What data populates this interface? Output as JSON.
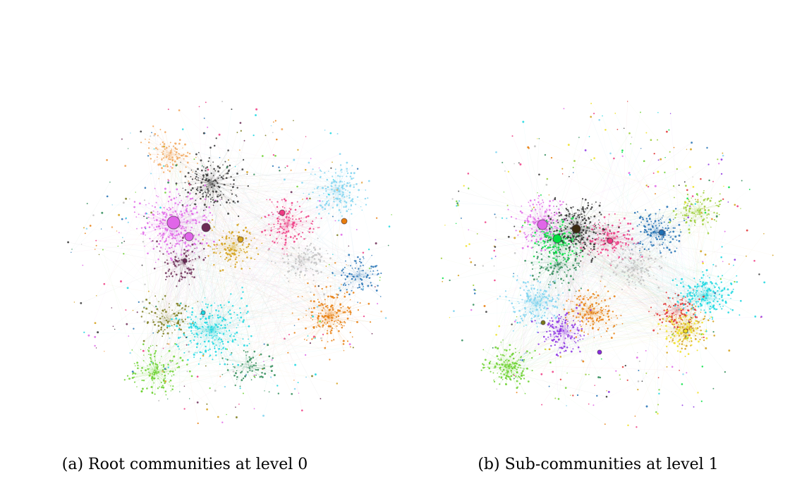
{
  "figure": {
    "panels": [
      {
        "caption": "(a) Root communities at level 0",
        "level": 0,
        "communities": [
          {
            "color": "#e066e8",
            "weight": 1.6
          },
          {
            "color": "#19d7e0",
            "weight": 1.4
          },
          {
            "color": "#e87d0c",
            "weight": 1.0
          },
          {
            "color": "#6ad12b",
            "weight": 0.8
          },
          {
            "color": "#d4a017",
            "weight": 0.7
          },
          {
            "color": "#ee3a82",
            "weight": 0.8
          },
          {
            "color": "#7fd4f0",
            "weight": 0.9
          },
          {
            "color": "#333333",
            "weight": 1.0
          },
          {
            "color": "#6b2a55",
            "weight": 0.5
          },
          {
            "color": "#7a7a1a",
            "weight": 0.5
          },
          {
            "color": "#1f6fb3",
            "weight": 0.5
          },
          {
            "color": "#f2a65a",
            "weight": 0.6
          },
          {
            "color": "#c2c2c2",
            "weight": 0.7
          },
          {
            "color": "#2e8b57",
            "weight": 0.4
          }
        ],
        "hubs": [
          {
            "color": "#e066e8",
            "size": 9
          },
          {
            "color": "#6b2a55",
            "size": 6
          },
          {
            "color": "#e066e8",
            "size": 6
          },
          {
            "color": "#d4a017",
            "size": 4
          },
          {
            "color": "#ee3a82",
            "size": 4
          },
          {
            "color": "#e87d0c",
            "size": 4
          },
          {
            "color": "#19d7e0",
            "size": 3
          },
          {
            "color": "#6b2a55",
            "size": 3
          }
        ]
      },
      {
        "caption": "(b) Sub-communities at level 1",
        "level": 1,
        "communities": [
          {
            "color": "#e066e8",
            "weight": 0.8
          },
          {
            "color": "#00e040",
            "weight": 0.7
          },
          {
            "color": "#19d7e0",
            "weight": 0.9
          },
          {
            "color": "#e87d0c",
            "weight": 0.7
          },
          {
            "color": "#6ad12b",
            "weight": 0.7
          },
          {
            "color": "#d4a017",
            "weight": 0.5
          },
          {
            "color": "#ee3a82",
            "weight": 0.6
          },
          {
            "color": "#7fd4f0",
            "weight": 0.8
          },
          {
            "color": "#333333",
            "weight": 1.1
          },
          {
            "color": "#8a2be2",
            "weight": 0.6
          },
          {
            "color": "#1f6fb3",
            "weight": 0.6
          },
          {
            "color": "#f0e020",
            "weight": 0.4
          },
          {
            "color": "#c2c2c2",
            "weight": 0.6
          },
          {
            "color": "#2e8b57",
            "weight": 0.5
          },
          {
            "color": "#e03030",
            "weight": 0.4
          },
          {
            "color": "#9acd32",
            "weight": 0.5
          }
        ],
        "hubs": [
          {
            "color": "#e066e8",
            "size": 7
          },
          {
            "color": "#3a2a10",
            "size": 6
          },
          {
            "color": "#00e040",
            "size": 6
          },
          {
            "color": "#ee3a82",
            "size": 4
          },
          {
            "color": "#1f6fb3",
            "size": 4
          },
          {
            "color": "#7a7a1a",
            "size": 3
          },
          {
            "color": "#8a2be2",
            "size": 3
          },
          {
            "color": "#f0e020",
            "size": 3
          }
        ]
      }
    ]
  }
}
